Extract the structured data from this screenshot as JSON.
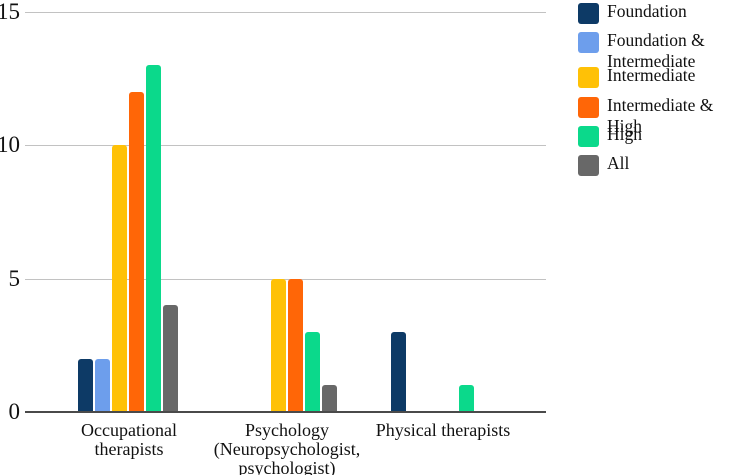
{
  "figure": {
    "background": "#ffffff",
    "text_color": "#111111",
    "gridline_color": "#c2c2c2",
    "axis_color": "#4a4a4a"
  },
  "chart_data": {
    "type": "bar",
    "title": "",
    "xlabel": "",
    "ylabel": "",
    "ylim": [
      0,
      15
    ],
    "yticks": [
      0,
      5,
      10,
      15
    ],
    "grid": true,
    "legend_position": "right",
    "categories": [
      "Occupational therapists",
      "Psychology (Neuropsychologist, psychologist)",
      "Physical therapists"
    ],
    "category_display_lines": [
      [
        "Occupational",
        "therapists"
      ],
      [
        "Psychology",
        "(Neuropsychologist,",
        "psychologist)"
      ],
      [
        "Physical therapists"
      ]
    ],
    "series": [
      {
        "name": "Foundation",
        "color": "#0d3a66",
        "values": [
          2,
          null,
          3
        ]
      },
      {
        "name": "Foundation & Intermediate",
        "color": "#6d9eec",
        "values": [
          2,
          null,
          null
        ]
      },
      {
        "name": "Intermediate",
        "color": "#ffc106",
        "values": [
          10,
          5,
          null
        ]
      },
      {
        "name": "Intermediate & High",
        "color": "#ff6607",
        "values": [
          12,
          5,
          null
        ]
      },
      {
        "name": "High",
        "color": "#0bd98b",
        "values": [
          13,
          3,
          1
        ]
      },
      {
        "name": "All",
        "color": "#686868",
        "values": [
          4,
          1,
          null
        ]
      }
    ],
    "legend_display_lines": [
      [
        "Foundation"
      ],
      [
        "Foundation &",
        "Intermediate"
      ],
      [
        "Intermediate"
      ],
      [
        "Intermediate & High"
      ],
      [
        "High"
      ],
      [
        "All"
      ]
    ]
  }
}
